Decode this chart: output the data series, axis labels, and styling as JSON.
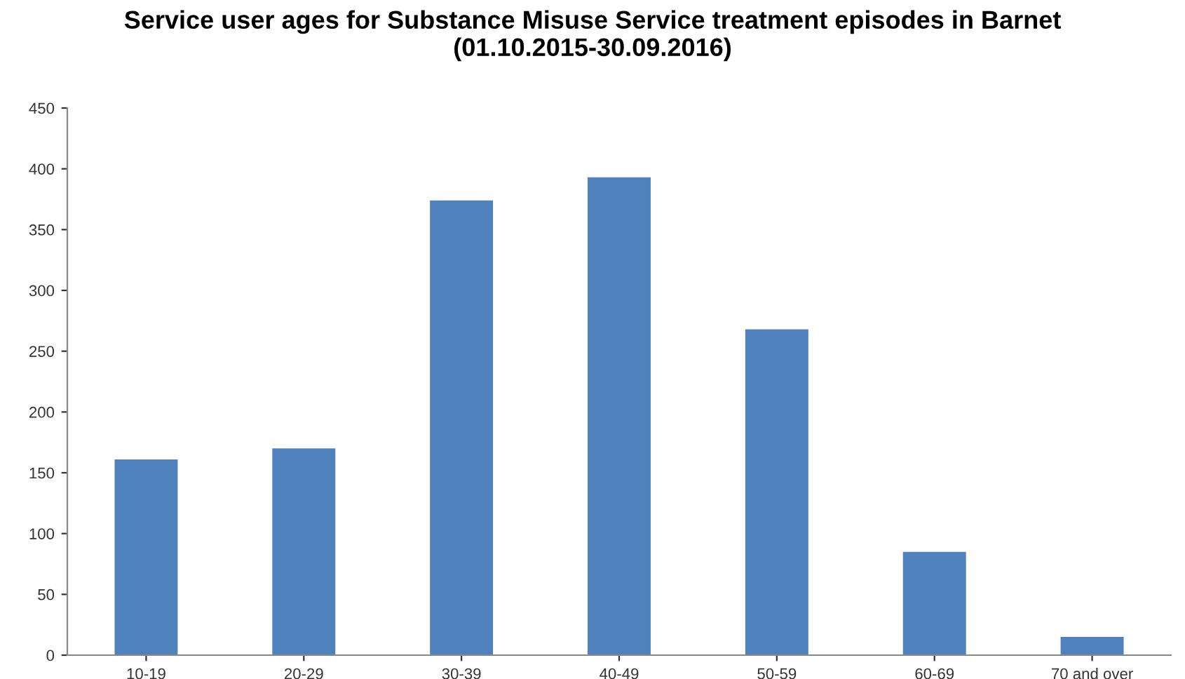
{
  "chart_data": {
    "type": "bar",
    "title": "Service user ages for Substance Misuse Service treatment episodes in Barnet\n(01.10.2015-30.09.2016)",
    "categories": [
      "10-19",
      "20-29",
      "30-39",
      "40-49",
      "50-59",
      "60-69",
      "70 and over"
    ],
    "values": [
      161,
      170,
      374,
      393,
      268,
      85,
      15
    ],
    "color": "#4f81bd",
    "ylim": [
      0,
      450
    ],
    "yticks": [
      0,
      50,
      100,
      150,
      200,
      250,
      300,
      350,
      400,
      450
    ],
    "grid": false,
    "legend": false
  }
}
